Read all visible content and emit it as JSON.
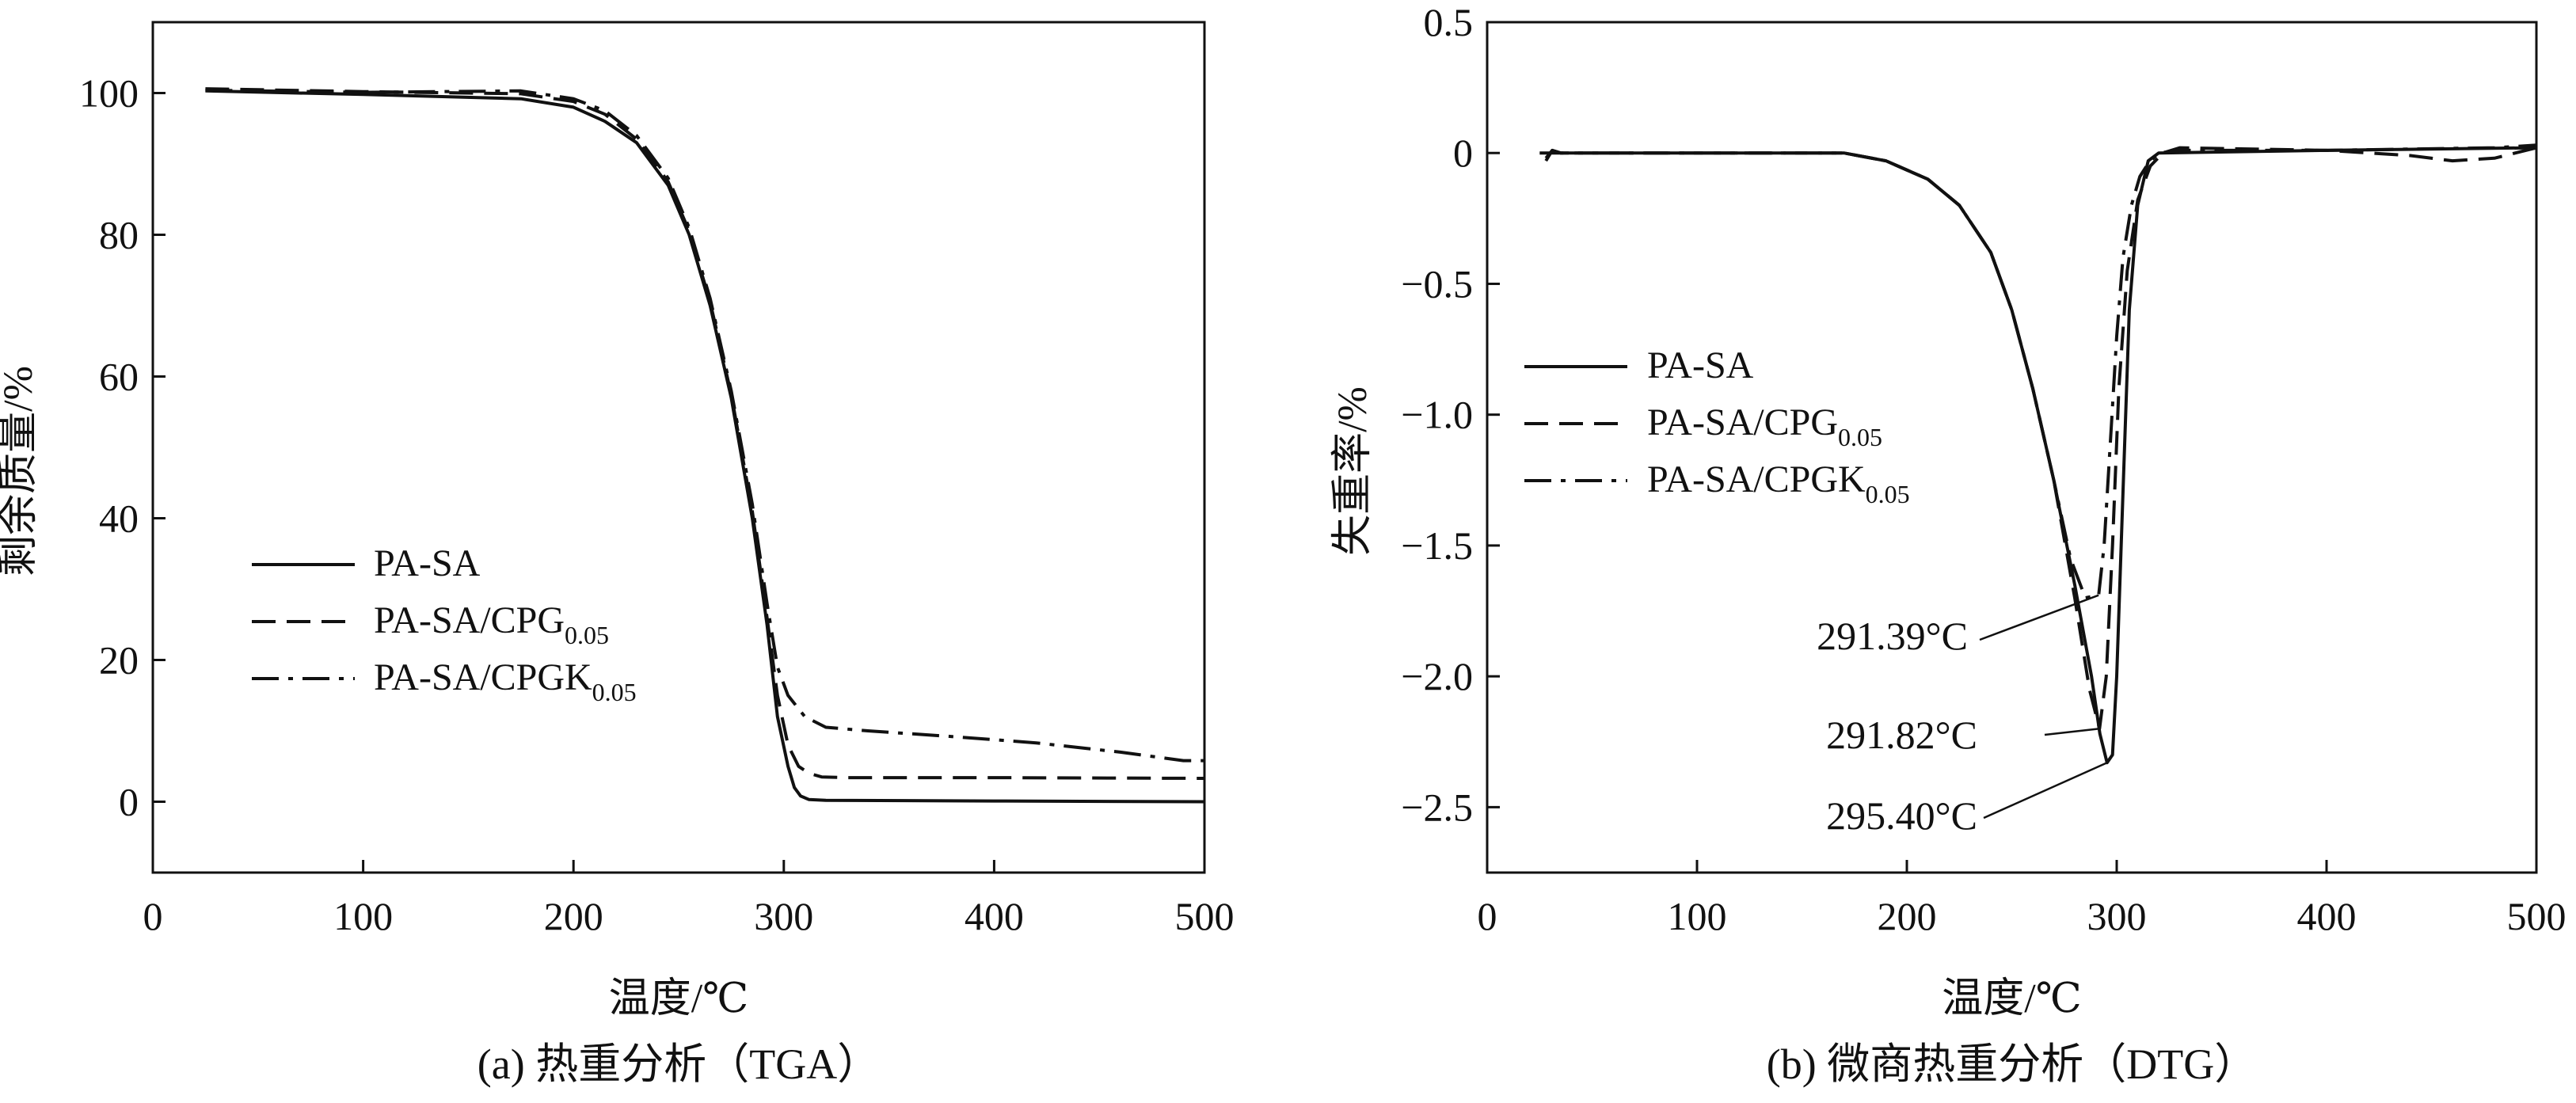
{
  "chart_data": [
    {
      "id": "tga",
      "type": "line",
      "caption": "(a) 热重分析（TGA）",
      "xlabel": "温度/℃",
      "ylabel": "剩余质量/%",
      "xlim": [
        0,
        500
      ],
      "ylim": [
        -10,
        110
      ],
      "xticks": [
        0,
        100,
        200,
        300,
        400,
        500
      ],
      "yticks": [
        0,
        20,
        40,
        60,
        80,
        100
      ],
      "grid": false,
      "legend_position": "left-lower",
      "legend": [
        {
          "base": "PA-SA",
          "sub": "",
          "style": "solid"
        },
        {
          "base": "PA-SA/CPG",
          "sub": "0.05",
          "style": "dashed"
        },
        {
          "base": "PA-SA/CPGK",
          "sub": "0.05",
          "style": "dashdot"
        }
      ],
      "series": [
        {
          "name": "PA-SA",
          "style": "solid",
          "x": [
            25,
            100,
            175,
            200,
            215,
            230,
            245,
            255,
            265,
            275,
            285,
            292,
            297,
            302,
            305,
            308,
            312,
            320,
            400,
            500
          ],
          "y": [
            100.3,
            99.8,
            99.2,
            98,
            96,
            93,
            87,
            80,
            70,
            57,
            40,
            25,
            12,
            5,
            2,
            0.8,
            0.3,
            0.2,
            0.1,
            0
          ]
        },
        {
          "name": "PA-SA/CPG0.05",
          "style": "dashed",
          "x": [
            25,
            100,
            175,
            200,
            215,
            230,
            245,
            255,
            265,
            275,
            285,
            292,
            297,
            302,
            307,
            312,
            318,
            330,
            400,
            500
          ],
          "y": [
            100.6,
            100.2,
            99.9,
            98.8,
            97,
            93.5,
            87.5,
            80.5,
            70.5,
            57.5,
            41,
            26,
            15,
            8,
            5,
            4,
            3.5,
            3.4,
            3.4,
            3.3
          ]
        },
        {
          "name": "PA-SA/CPGK0.05",
          "style": "dashdot",
          "x": [
            25,
            100,
            175,
            200,
            215,
            230,
            245,
            255,
            265,
            275,
            285,
            292,
            297,
            302,
            310,
            320,
            340,
            380,
            420,
            460,
            490,
            500
          ],
          "y": [
            100.4,
            100.1,
            100.3,
            99.2,
            97.5,
            94,
            88,
            81,
            71,
            58,
            42,
            28,
            19,
            15,
            12,
            10.5,
            10,
            9.2,
            8.3,
            7,
            5.8,
            5.8
          ]
        }
      ]
    },
    {
      "id": "dtg",
      "type": "line",
      "caption": "(b) 微商热重分析（DTG）",
      "xlabel": "温度/℃",
      "ylabel": "失重率/%",
      "xlim": [
        0,
        500
      ],
      "ylim": [
        -2.75,
        0.5
      ],
      "xticks": [
        0,
        100,
        200,
        300,
        400,
        500
      ],
      "yticks": [
        0.5,
        0,
        -0.5,
        -1.0,
        -1.5,
        -2.0,
        -2.5
      ],
      "ytick_labels": [
        "0.5",
        "0",
        "−0.5",
        "−1.0",
        "−1.5",
        "−2.0",
        "−2.5"
      ],
      "grid": false,
      "legend_position": "left-middle",
      "legend": [
        {
          "base": "PA-SA",
          "sub": "",
          "style": "solid"
        },
        {
          "base": "PA-SA/CPG",
          "sub": "0.05",
          "style": "dashed"
        },
        {
          "base": "PA-SA/CPGK",
          "sub": "0.05",
          "style": "dashdot"
        }
      ],
      "series": [
        {
          "name": "PA-SA",
          "style": "solid",
          "x": [
            25,
            100,
            170,
            190,
            210,
            225,
            240,
            250,
            260,
            270,
            280,
            288,
            292,
            295.4,
            298,
            300,
            303,
            306,
            310,
            315,
            320,
            400,
            500
          ],
          "y": [
            0,
            0,
            0,
            -0.03,
            -0.1,
            -0.2,
            -0.38,
            -0.6,
            -0.9,
            -1.25,
            -1.65,
            -2.0,
            -2.22,
            -2.33,
            -2.3,
            -2.0,
            -1.3,
            -0.6,
            -0.2,
            -0.03,
            0,
            0.01,
            0.02
          ]
        },
        {
          "name": "PA-SA/CPG0.05",
          "style": "dashed",
          "x": [
            28,
            31,
            35,
            100,
            170,
            190,
            210,
            225,
            240,
            250,
            260,
            270,
            280,
            287,
            291.82,
            295,
            298,
            301,
            305,
            310,
            316,
            322,
            330,
            400,
            440,
            460,
            480,
            500
          ],
          "y": [
            -0.03,
            0.01,
            0,
            0,
            0,
            -0.03,
            -0.1,
            -0.2,
            -0.38,
            -0.6,
            -0.9,
            -1.25,
            -1.7,
            -2.05,
            -2.2,
            -2.0,
            -1.5,
            -0.9,
            -0.45,
            -0.18,
            -0.05,
            0,
            0.02,
            0.01,
            -0.01,
            -0.03,
            -0.02,
            0.02
          ]
        },
        {
          "name": "PA-SA/CPGK0.05",
          "style": "dashdot",
          "x": [
            28,
            31,
            35,
            100,
            170,
            190,
            210,
            225,
            240,
            250,
            260,
            270,
            278,
            285,
            291.39,
            294,
            297,
            300,
            303,
            307,
            311,
            315,
            320,
            330,
            400,
            480,
            500
          ],
          "y": [
            -0.02,
            0.01,
            0,
            0,
            0,
            -0.03,
            -0.1,
            -0.2,
            -0.38,
            -0.6,
            -0.9,
            -1.25,
            -1.55,
            -1.7,
            -1.69,
            -1.5,
            -1.1,
            -0.7,
            -0.4,
            -0.2,
            -0.09,
            -0.04,
            0,
            0.01,
            0.01,
            0.02,
            0.03
          ]
        }
      ],
      "annotations": [
        {
          "text": "291.39°C",
          "x": 291.39,
          "y": -1.69
        },
        {
          "text": "291.82°C",
          "x": 291.82,
          "y": -2.2
        },
        {
          "text": "295.40°C",
          "x": 295.4,
          "y": -2.33
        }
      ]
    }
  ]
}
